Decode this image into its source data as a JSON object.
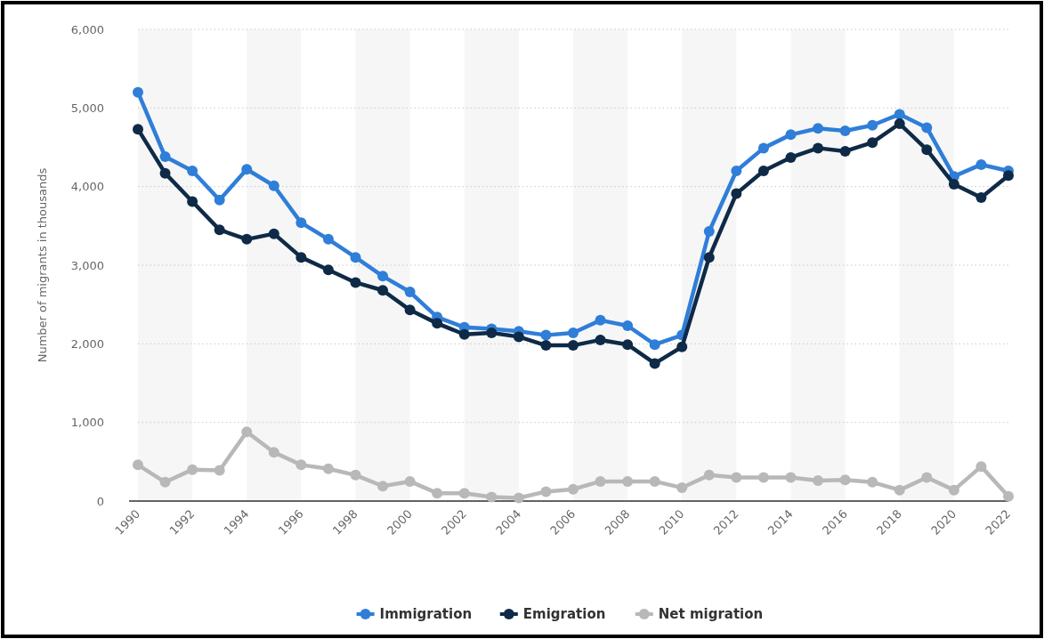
{
  "chart_data": {
    "type": "line",
    "ylabel": "Number of migrants in thousands",
    "x": [
      1990,
      1991,
      1992,
      1993,
      1994,
      1995,
      1996,
      1997,
      1998,
      1999,
      2000,
      2001,
      2002,
      2003,
      2004,
      2005,
      2006,
      2007,
      2008,
      2009,
      2010,
      2011,
      2012,
      2013,
      2014,
      2015,
      2016,
      2017,
      2018,
      2019,
      2020,
      2021,
      2022
    ],
    "series": [
      {
        "name": "Immigration",
        "color": "#2f7ed8",
        "values": [
          5200,
          4380,
          4200,
          3830,
          4220,
          4010,
          3540,
          3330,
          3100,
          2860,
          2660,
          2340,
          2210,
          2190,
          2160,
          2110,
          2140,
          2300,
          2230,
          1990,
          2110,
          3430,
          4200,
          4490,
          4660,
          4740,
          4710,
          4780,
          4920,
          4750,
          4130,
          4280,
          4200
        ]
      },
      {
        "name": "Emigration",
        "color": "#0e2a47",
        "values": [
          4730,
          4170,
          3810,
          3450,
          3330,
          3400,
          3100,
          2940,
          2780,
          2680,
          2430,
          2260,
          2120,
          2140,
          2090,
          1980,
          1980,
          2050,
          1990,
          1750,
          1960,
          3100,
          3910,
          4200,
          4370,
          4490,
          4450,
          4560,
          4800,
          4470,
          4030,
          3860,
          4140
        ]
      },
      {
        "name": "Net migration",
        "color": "#b8b8b8",
        "values": [
          460,
          240,
          400,
          390,
          880,
          620,
          460,
          410,
          330,
          190,
          250,
          100,
          100,
          50,
          40,
          120,
          150,
          250,
          250,
          250,
          170,
          330,
          300,
          300,
          300,
          260,
          270,
          240,
          140,
          300,
          140,
          440,
          60
        ]
      }
    ],
    "xlim": [
      1990,
      2022
    ],
    "xticks": [
      1990,
      1992,
      1994,
      1996,
      1998,
      2000,
      2002,
      2004,
      2006,
      2008,
      2010,
      2012,
      2014,
      2016,
      2018,
      2020,
      2022
    ],
    "ylim": [
      0,
      6000
    ],
    "yticks": [
      {
        "value": 0,
        "label": "0"
      },
      {
        "value": 1000,
        "label": "1,000"
      },
      {
        "value": 2000,
        "label": "2,000"
      },
      {
        "value": 3000,
        "label": "3,000"
      },
      {
        "value": 4000,
        "label": "4,000"
      },
      {
        "value": 5000,
        "label": "5,000"
      },
      {
        "value": 6000,
        "label": "6,000"
      }
    ],
    "bands": [
      {
        "axis": "x",
        "from": 1990,
        "to": 1992,
        "color": "#f6f6f6"
      },
      {
        "axis": "x",
        "from": 1994,
        "to": 1996,
        "color": "#f6f6f6"
      },
      {
        "axis": "x",
        "from": 1998,
        "to": 2000,
        "color": "#f6f6f6"
      },
      {
        "axis": "x",
        "from": 2002,
        "to": 2004,
        "color": "#f6f6f6"
      },
      {
        "axis": "x",
        "from": 2006,
        "to": 2008,
        "color": "#f6f6f6"
      },
      {
        "axis": "x",
        "from": 2010,
        "to": 2012,
        "color": "#f6f6f6"
      },
      {
        "axis": "x",
        "from": 2014,
        "to": 2016,
        "color": "#f6f6f6"
      },
      {
        "axis": "x",
        "from": 2018,
        "to": 2020,
        "color": "#f6f6f6"
      }
    ],
    "grid": "y",
    "legend": "bottom",
    "marker": "circle",
    "line_style": "solid"
  }
}
